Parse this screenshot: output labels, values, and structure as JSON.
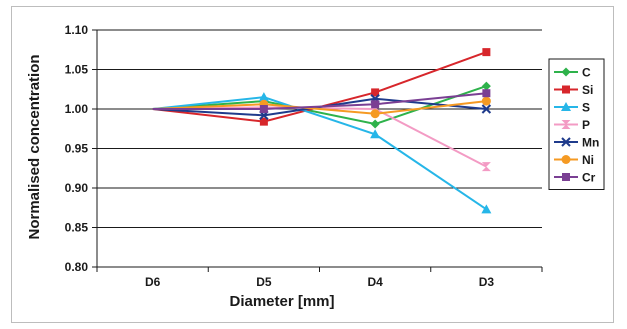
{
  "chart_data": {
    "type": "line",
    "xlabel": "Diameter [mm]",
    "ylabel": "Normalised concentration",
    "categories": [
      "D6",
      "D5",
      "D4",
      "D3"
    ],
    "ylim": [
      0.8,
      1.1
    ],
    "yticks": [
      "0.80",
      "0.85",
      "0.90",
      "0.95",
      "1.00",
      "1.05",
      "1.10"
    ],
    "grid": "horizontal",
    "legend_position": "right",
    "series": [
      {
        "name": "C",
        "color": "#2eb24b",
        "marker": "diamond",
        "values": [
          1.0,
          1.01,
          0.981,
          1.029
        ]
      },
      {
        "name": "Si",
        "color": "#d7262b",
        "marker": "square",
        "values": [
          1.0,
          0.984,
          1.021,
          1.072
        ]
      },
      {
        "name": "S",
        "color": "#26b6e8",
        "marker": "triangle",
        "values": [
          1.0,
          1.015,
          0.968,
          0.873
        ]
      },
      {
        "name": "P",
        "color": "#f39bc4",
        "marker": "hourglass",
        "values": [
          1.0,
          1.002,
          1.0,
          0.927
        ]
      },
      {
        "name": "Mn",
        "color": "#1f3b8c",
        "marker": "x",
        "values": [
          1.0,
          0.992,
          1.013,
          1.0
        ]
      },
      {
        "name": "Ni",
        "color": "#f59a23",
        "marker": "circle",
        "values": [
          1.0,
          1.006,
          0.994,
          1.01
        ]
      },
      {
        "name": "Cr",
        "color": "#7a3f93",
        "marker": "plus",
        "values": [
          1.0,
          1.0,
          1.006,
          1.02
        ]
      }
    ]
  }
}
